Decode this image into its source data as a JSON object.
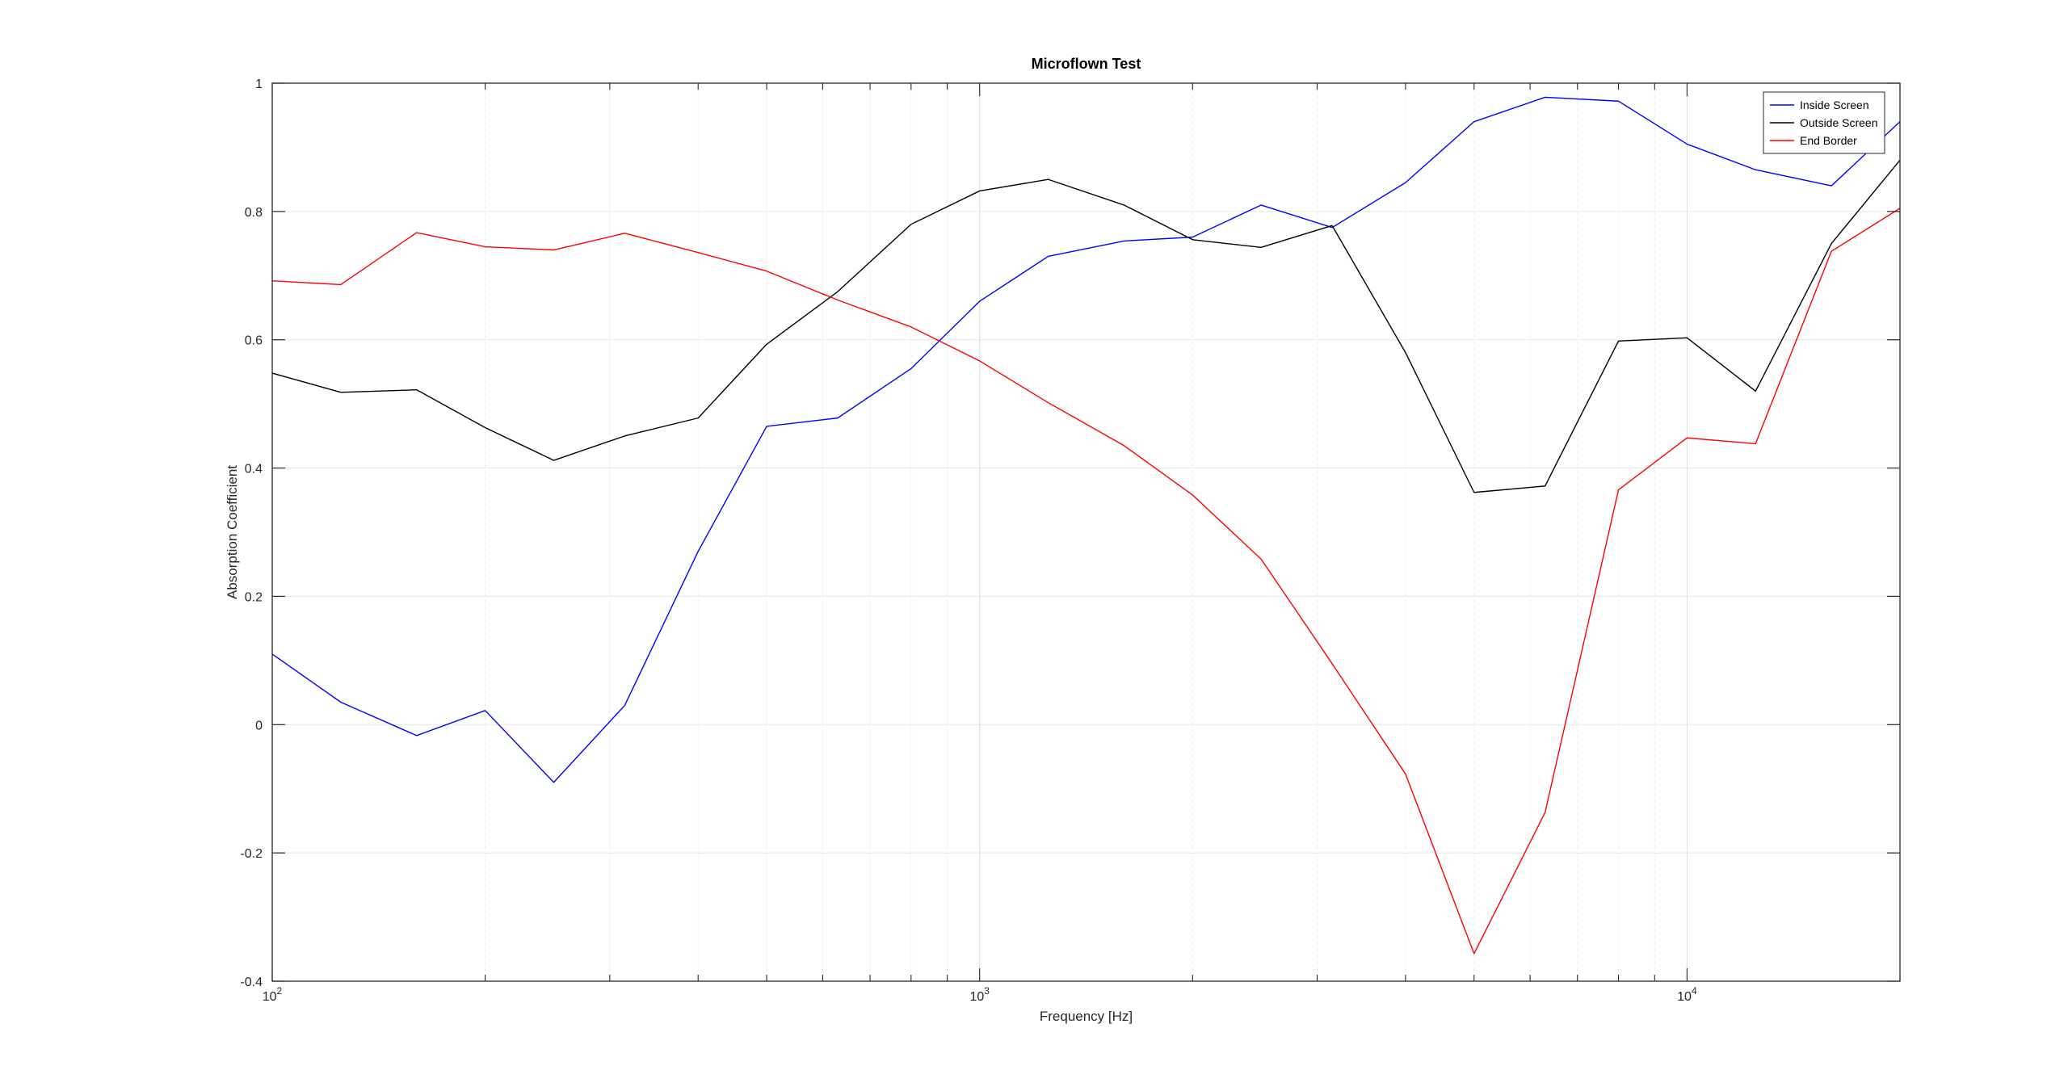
{
  "chart_data": {
    "type": "line",
    "title": "Microflown Test",
    "xlabel": "Frequency [Hz]",
    "ylabel": "Absorption Coefficient",
    "xscale": "log",
    "xlim": [
      100,
      20000
    ],
    "ylim": [
      -0.4,
      1
    ],
    "yticks": [
      -0.4,
      -0.2,
      0,
      0.2,
      0.4,
      0.6,
      0.8,
      1
    ],
    "ytick_labels": [
      "-0.4",
      "-0.2",
      "0",
      "0.2",
      "0.4",
      "0.6",
      "0.8",
      "1"
    ],
    "xticks": [
      {
        "value": 100,
        "base": "10",
        "exp": "2"
      },
      {
        "value": 1000,
        "base": "10",
        "exp": "3"
      },
      {
        "value": 10000,
        "base": "10",
        "exp": "4"
      }
    ],
    "grid": true,
    "legend_position": "top-right",
    "x": [
      100,
      125,
      160,
      200,
      250,
      315,
      400,
      500,
      630,
      800,
      1000,
      1250,
      1600,
      2000,
      2500,
      3150,
      4000,
      5000,
      6300,
      8000,
      10000,
      12500,
      16000,
      20000
    ],
    "series": [
      {
        "name": "Inside Screen",
        "color": "#0000ff",
        "values": [
          0.11,
          0.035,
          -0.017,
          0.022,
          -0.09,
          0.03,
          0.27,
          0.465,
          0.478,
          0.555,
          0.66,
          0.73,
          0.754,
          0.76,
          0.81,
          0.775,
          0.845,
          0.94,
          0.978,
          0.972,
          0.905,
          0.865,
          0.84,
          0.94
        ]
      },
      {
        "name": "Outside Screen",
        "color": "#000000",
        "values": [
          0.548,
          0.518,
          0.522,
          0.463,
          0.412,
          0.45,
          0.478,
          0.593,
          0.675,
          0.78,
          0.832,
          0.85,
          0.81,
          0.756,
          0.744,
          0.778,
          0.58,
          0.362,
          0.372,
          0.598,
          0.603,
          0.52,
          0.75,
          0.88
        ]
      },
      {
        "name": "End Border",
        "color": "#ff0000",
        "values": [
          0.692,
          0.686,
          0.767,
          0.745,
          0.74,
          0.766,
          0.736,
          0.707,
          0.662,
          0.62,
          0.567,
          0.502,
          0.435,
          0.358,
          0.258,
          0.095,
          -0.077,
          -0.357,
          -0.137,
          0.366,
          0.447,
          0.438,
          0.738,
          0.805
        ]
      }
    ]
  }
}
